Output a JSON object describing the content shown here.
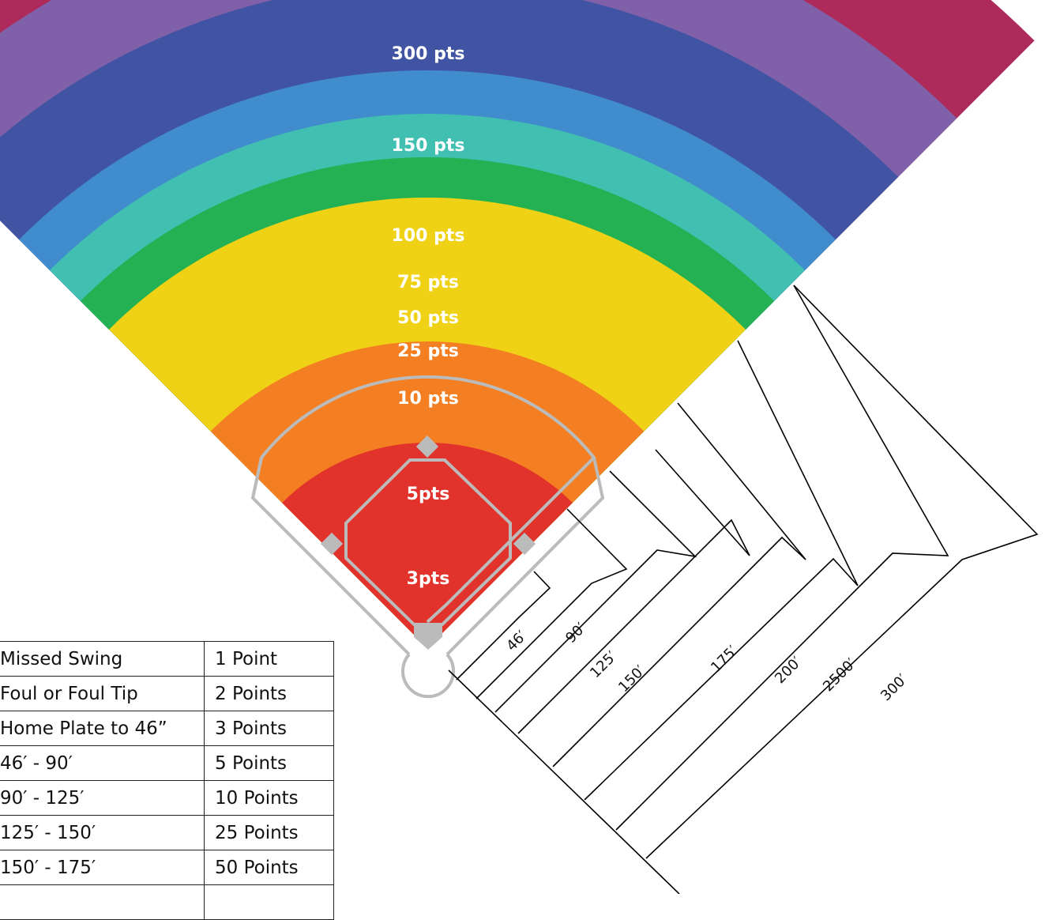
{
  "zones": [
    {
      "label": "300 pts",
      "color": "#ae2a5b"
    },
    {
      "label": "150 pts",
      "color": "#7f60a9"
    },
    {
      "label": "100 pts",
      "color": "#4154a4"
    },
    {
      "label": "75 pts",
      "color": "#418ccc"
    },
    {
      "label": "50 pts",
      "color": "#41bfb1"
    },
    {
      "label": "25   pts",
      "color": "#23b153"
    },
    {
      "label": "10 pts",
      "color": "#efd215"
    },
    {
      "label": "5pts",
      "color": "#f47f22"
    },
    {
      "label": "3pts",
      "color": "#e2322c"
    }
  ],
  "distances": [
    "46′",
    "90′",
    "125′",
    "150′",
    "175′",
    "200′",
    "2500′",
    "300′"
  ],
  "diamond_color": "#bbbbbb",
  "score_table": [
    {
      "event": "Missed Swing",
      "points": "1 Point"
    },
    {
      "event": "Foul or Foul Tip",
      "points": "2 Points"
    },
    {
      "event": "Home Plate to 46”",
      "points": "3 Points"
    },
    {
      "event": "46′ - 90′",
      "points": "5 Points"
    },
    {
      "event": "90′ - 125′",
      "points": "10 Points"
    },
    {
      "event": "125′ - 150′",
      "points": "25 Points"
    },
    {
      "event": "150′ - 175′",
      "points": "50 Points"
    },
    {
      "event": "",
      "points": ""
    }
  ]
}
